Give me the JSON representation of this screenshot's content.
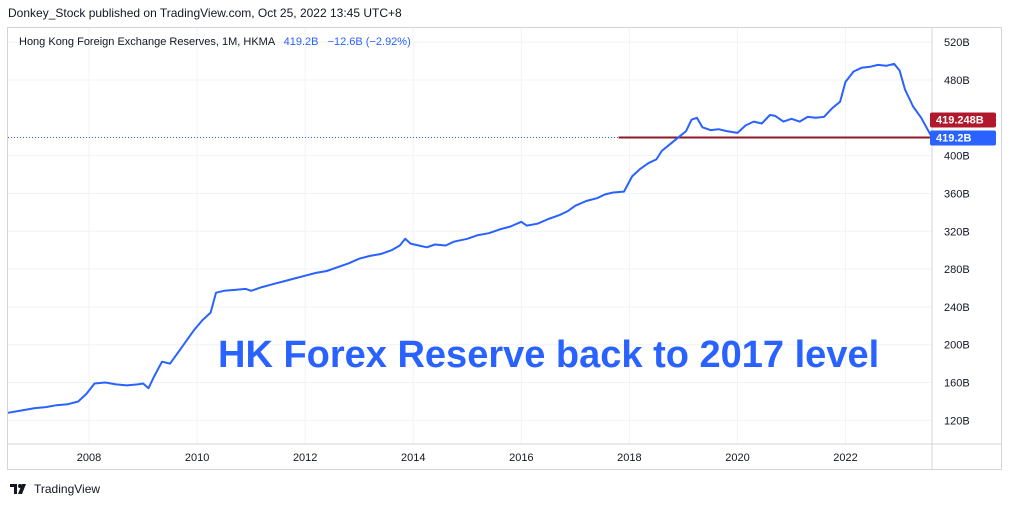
{
  "header": {
    "published_text": "Donkey_Stock published on TradingView.com, Oct 25, 2022 13:45 UTC+8"
  },
  "legend": {
    "symbol": "Hong Kong Foreign Exchange Reserves, 1M, HKMA",
    "last_value": "419.2B",
    "change": "−12.6B (−2.92%)"
  },
  "footer": {
    "brand": "TradingView"
  },
  "colors": {
    "line": "#2962ff",
    "reference_line": "#8b1a2a",
    "price_tag_red": "#b2182b",
    "price_tag_blue": "#2962ff",
    "grid": "#f0f3fa",
    "annotation": "#2962ff"
  },
  "chart_data": {
    "type": "line",
    "title": "",
    "xlabel": "",
    "ylabel": "",
    "x_ticks": [
      "2008",
      "2010",
      "2012",
      "2014",
      "2016",
      "2018",
      "2020",
      "2022"
    ],
    "y_ticks": [
      "120B",
      "160B",
      "200B",
      "240B",
      "280B",
      "320B",
      "360B",
      "400B",
      "480B",
      "520B"
    ],
    "xlim": [
      2006.5,
      2023.6
    ],
    "ylim": [
      95,
      535
    ],
    "grid": true,
    "annotation": "HK Forex Reserve back to 2017 level",
    "price_labels": [
      {
        "text": "419.248B",
        "value": 419.248,
        "color": "red"
      },
      {
        "text": "419.2B",
        "value": 419.2,
        "color": "blue"
      }
    ],
    "reference_line": {
      "value": 419.248,
      "from_x": 2017.8,
      "to_x": 2023.6
    },
    "series": [
      {
        "values": [
          [
            2006.5,
            128
          ],
          [
            2006.8,
            131
          ],
          [
            2007.0,
            133
          ],
          [
            2007.2,
            134
          ],
          [
            2007.4,
            136
          ],
          [
            2007.6,
            137
          ],
          [
            2007.8,
            140
          ],
          [
            2007.95,
            148
          ],
          [
            2008.1,
            159
          ],
          [
            2008.3,
            160
          ],
          [
            2008.5,
            158
          ],
          [
            2008.7,
            157
          ],
          [
            2008.9,
            158
          ],
          [
            2009.0,
            159
          ],
          [
            2009.1,
            154
          ],
          [
            2009.2,
            166
          ],
          [
            2009.35,
            182
          ],
          [
            2009.5,
            180
          ],
          [
            2009.65,
            192
          ],
          [
            2009.8,
            204
          ],
          [
            2009.95,
            216
          ],
          [
            2010.1,
            226
          ],
          [
            2010.25,
            234
          ],
          [
            2010.35,
            255
          ],
          [
            2010.5,
            257
          ],
          [
            2010.7,
            258
          ],
          [
            2010.9,
            259
          ],
          [
            2011.0,
            257
          ],
          [
            2011.2,
            261
          ],
          [
            2011.4,
            264
          ],
          [
            2011.6,
            267
          ],
          [
            2011.8,
            270
          ],
          [
            2012.0,
            273
          ],
          [
            2012.2,
            276
          ],
          [
            2012.4,
            278
          ],
          [
            2012.6,
            282
          ],
          [
            2012.8,
            286
          ],
          [
            2013.0,
            291
          ],
          [
            2013.2,
            294
          ],
          [
            2013.4,
            296
          ],
          [
            2013.6,
            300
          ],
          [
            2013.75,
            305
          ],
          [
            2013.85,
            312
          ],
          [
            2013.95,
            307
          ],
          [
            2014.1,
            305
          ],
          [
            2014.25,
            303
          ],
          [
            2014.4,
            306
          ],
          [
            2014.6,
            305
          ],
          [
            2014.75,
            309
          ],
          [
            2015.0,
            312
          ],
          [
            2015.2,
            316
          ],
          [
            2015.4,
            318
          ],
          [
            2015.6,
            322
          ],
          [
            2015.8,
            325
          ],
          [
            2016.0,
            330
          ],
          [
            2016.1,
            326
          ],
          [
            2016.3,
            328
          ],
          [
            2016.5,
            333
          ],
          [
            2016.7,
            337
          ],
          [
            2016.85,
            341
          ],
          [
            2017.0,
            347
          ],
          [
            2017.2,
            352
          ],
          [
            2017.4,
            355
          ],
          [
            2017.55,
            359
          ],
          [
            2017.7,
            361
          ],
          [
            2017.9,
            362
          ],
          [
            2018.05,
            378
          ],
          [
            2018.2,
            386
          ],
          [
            2018.35,
            392
          ],
          [
            2018.5,
            396
          ],
          [
            2018.6,
            405
          ],
          [
            2018.75,
            412
          ],
          [
            2018.9,
            419
          ],
          [
            2019.05,
            426
          ],
          [
            2019.15,
            438
          ],
          [
            2019.25,
            440
          ],
          [
            2019.35,
            430
          ],
          [
            2019.5,
            427
          ],
          [
            2019.65,
            428
          ],
          [
            2019.8,
            426
          ],
          [
            2020.0,
            424
          ],
          [
            2020.15,
            432
          ],
          [
            2020.3,
            436
          ],
          [
            2020.45,
            434
          ],
          [
            2020.6,
            443
          ],
          [
            2020.7,
            442
          ],
          [
            2020.85,
            436
          ],
          [
            2021.0,
            439
          ],
          [
            2021.15,
            436
          ],
          [
            2021.3,
            441
          ],
          [
            2021.45,
            440
          ],
          [
            2021.6,
            441
          ],
          [
            2021.75,
            450
          ],
          [
            2021.9,
            457
          ],
          [
            2022.0,
            478
          ],
          [
            2022.15,
            489
          ],
          [
            2022.3,
            493
          ],
          [
            2022.45,
            494
          ],
          [
            2022.6,
            496
          ],
          [
            2022.75,
            495
          ],
          [
            2022.9,
            497
          ],
          [
            2023.0,
            490
          ],
          [
            2023.1,
            470
          ],
          [
            2023.25,
            452
          ],
          [
            2023.4,
            440
          ],
          [
            2023.6,
            419.2
          ]
        ]
      }
    ]
  }
}
